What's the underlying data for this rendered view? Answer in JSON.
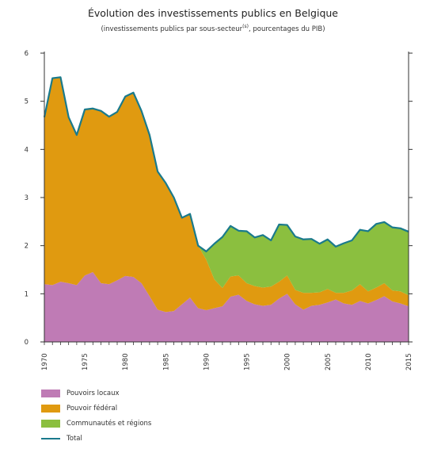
{
  "header": {
    "title": "Évolution des investissements publics en Belgique",
    "subtitle_main": "(investissements publics par sous-secteur",
    "subtitle_sup": "(s)",
    "subtitle_end": ", pourcentages du PIB)"
  },
  "chart_data": {
    "type": "area",
    "title": "Évolution des investissements publics en Belgique",
    "subtitle": "(investissements publics par sous-secteur(s), pourcentages du PIB)",
    "stacked": true,
    "x": [
      1970,
      1971,
      1972,
      1973,
      1974,
      1975,
      1976,
      1977,
      1978,
      1979,
      1980,
      1981,
      1982,
      1983,
      1984,
      1985,
      1986,
      1987,
      1988,
      1989,
      1990,
      1991,
      1992,
      1993,
      1994,
      1995,
      1996,
      1997,
      1998,
      1999,
      2000,
      2001,
      2002,
      2003,
      2004,
      2005,
      2006,
      2007,
      2008,
      2009,
      2010,
      2011,
      2012,
      2013,
      2014,
      2015
    ],
    "ylim": [
      0,
      6
    ],
    "yticks": [
      0,
      1,
      2,
      3,
      4,
      5,
      6
    ],
    "xticks": [
      1970,
      1975,
      1980,
      1985,
      1990,
      1995,
      2000,
      2005,
      2010,
      2015
    ],
    "grid": false,
    "legend_position": "bottom-left",
    "series": [
      {
        "name": "Pouvoirs locaux",
        "kind": "area",
        "color": "#bf7bb5",
        "values": [
          1.2,
          1.18,
          1.25,
          1.22,
          1.18,
          1.38,
          1.45,
          1.22,
          1.2,
          1.28,
          1.37,
          1.35,
          1.22,
          0.95,
          0.67,
          0.62,
          0.64,
          0.78,
          0.92,
          0.7,
          0.66,
          0.7,
          0.74,
          0.94,
          0.98,
          0.85,
          0.78,
          0.75,
          0.77,
          0.9,
          1.0,
          0.78,
          0.67,
          0.75,
          0.77,
          0.82,
          0.88,
          0.8,
          0.77,
          0.85,
          0.8,
          0.87,
          0.95,
          0.84,
          0.8,
          0.74
        ]
      },
      {
        "name": "Pouvoir fédéral",
        "kind": "area",
        "color": "#e09a10",
        "values": [
          3.47,
          4.3,
          4.25,
          3.45,
          3.12,
          3.45,
          3.4,
          3.58,
          3.48,
          3.5,
          3.73,
          3.83,
          3.58,
          3.35,
          2.87,
          2.68,
          2.36,
          1.8,
          1.74,
          1.3,
          1.05,
          0.6,
          0.38,
          0.42,
          0.4,
          0.37,
          0.38,
          0.38,
          0.38,
          0.35,
          0.38,
          0.3,
          0.35,
          0.27,
          0.26,
          0.28,
          0.14,
          0.22,
          0.3,
          0.35,
          0.25,
          0.26,
          0.27,
          0.23,
          0.25,
          0.23
        ]
      },
      {
        "name": "Communautés et régions",
        "kind": "area",
        "color": "#8bbf3f",
        "values": [
          0,
          0,
          0,
          0,
          0,
          0,
          0,
          0,
          0,
          0,
          0,
          0,
          0,
          0,
          0,
          0,
          0,
          0,
          0,
          0.0,
          0.17,
          0.74,
          1.06,
          1.05,
          0.93,
          1.08,
          1.01,
          1.09,
          0.96,
          1.19,
          1.05,
          1.11,
          1.11,
          1.12,
          1.01,
          1.03,
          0.96,
          1.03,
          1.04,
          1.13,
          1.25,
          1.32,
          1.27,
          1.31,
          1.31,
          1.32
        ]
      },
      {
        "name": "Total",
        "kind": "line",
        "color": "#1a7a8c",
        "values": [
          4.67,
          5.48,
          5.5,
          4.67,
          4.3,
          4.83,
          4.85,
          4.8,
          4.68,
          4.78,
          5.1,
          5.18,
          4.8,
          4.3,
          3.54,
          3.3,
          3.0,
          2.58,
          2.66,
          2.0,
          1.88,
          2.04,
          2.18,
          2.41,
          2.31,
          2.3,
          2.17,
          2.22,
          2.11,
          2.44,
          2.43,
          2.19,
          2.13,
          2.14,
          2.04,
          2.13,
          1.98,
          2.05,
          2.11,
          2.33,
          2.3,
          2.45,
          2.49,
          2.38,
          2.36,
          2.29
        ]
      }
    ]
  },
  "legend": [
    {
      "label": "Pouvoirs locaux",
      "color": "#bf7bb5",
      "kind": "area"
    },
    {
      "label": "Pouvoir fédéral",
      "color": "#e09a10",
      "kind": "area"
    },
    {
      "label": "Communautés et régions",
      "color": "#8bbf3f",
      "kind": "area"
    },
    {
      "label": "Total",
      "color": "#1a7a8c",
      "kind": "line"
    }
  ]
}
